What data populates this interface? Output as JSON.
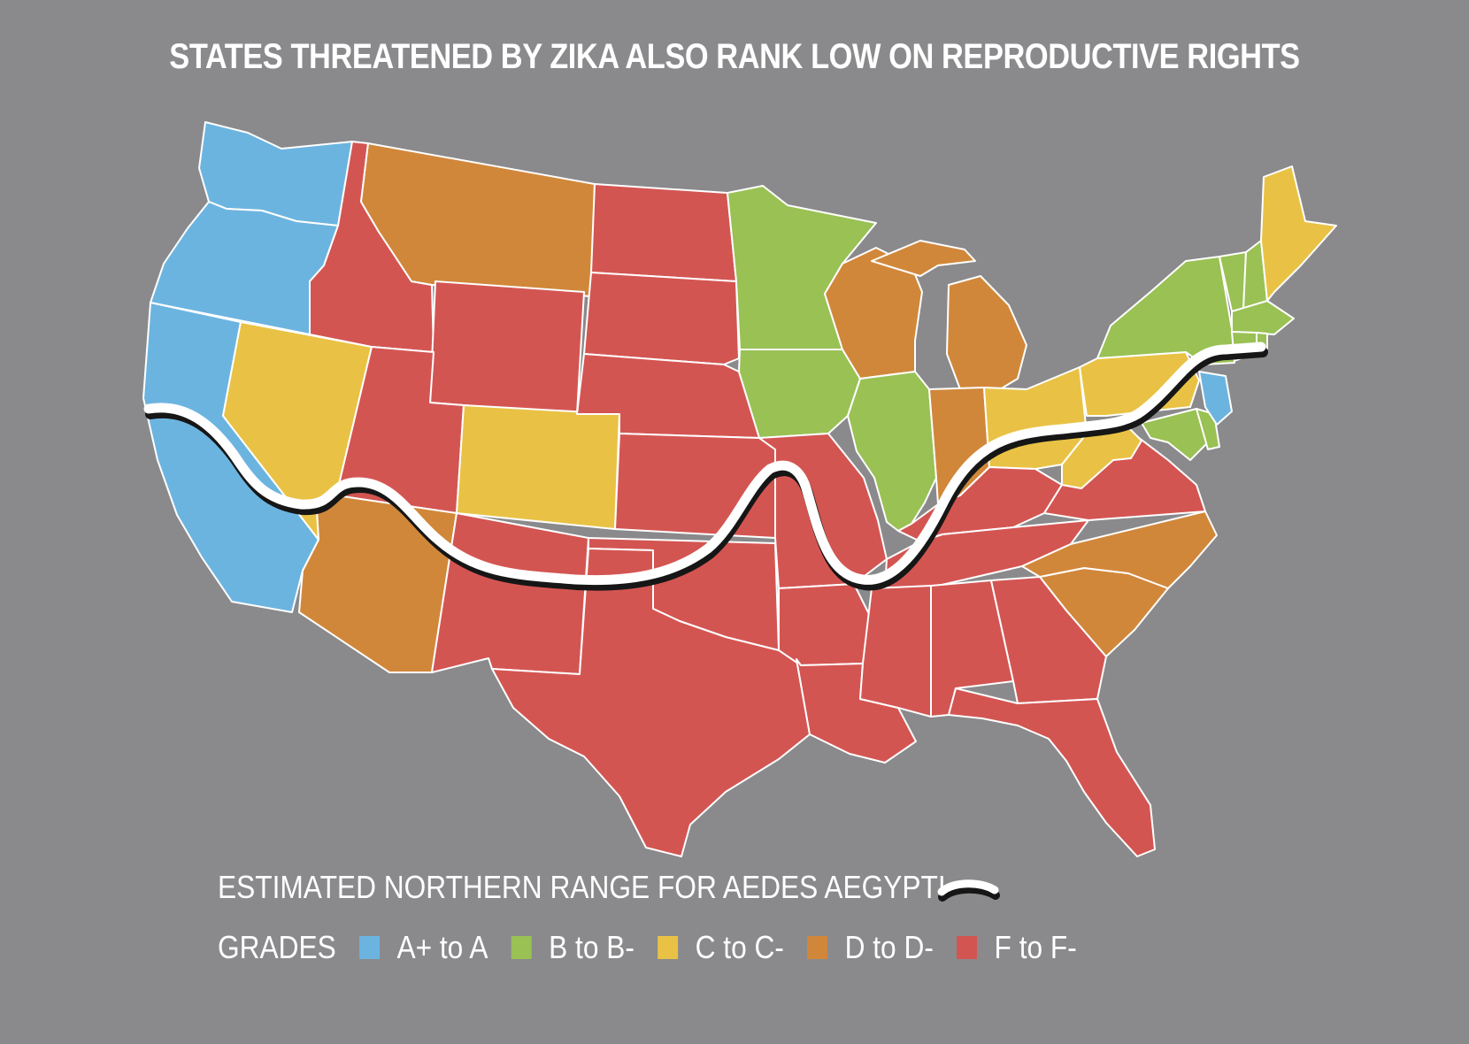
{
  "title": "STATES THREATENED BY ZIKA ALSO RANK LOW ON REPRODUCTIVE RIGHTS",
  "legend": {
    "range_label": "ESTIMATED NORTHERN RANGE FOR AEDES AEGYPTI",
    "grades_label": "GRADES",
    "grades": [
      {
        "label": "A+ to A",
        "color": "#6cb4e0"
      },
      {
        "label": "B to B-",
        "color": "#99c154"
      },
      {
        "label": "C to C-",
        "color": "#e9c245"
      },
      {
        "label": "D to D-",
        "color": "#d1873a"
      },
      {
        "label": "F to F-",
        "color": "#d35552"
      }
    ]
  },
  "colors": {
    "background": "#8a8a8c",
    "A": "#6cb4e0",
    "B": "#99c154",
    "C": "#e9c245",
    "D": "#d1873a",
    "F": "#d35552"
  }
}
